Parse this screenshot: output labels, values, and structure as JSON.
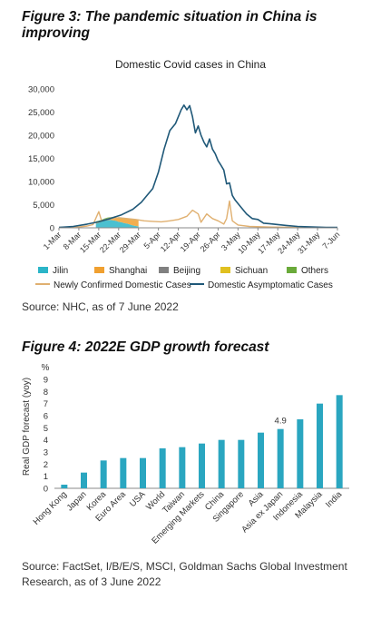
{
  "figure3": {
    "heading": "Figure 3: The pandemic situation in China is improving",
    "source": "Source: NHC, as of 7 June 2022"
  },
  "figure4": {
    "heading": "Figure 4: 2022E GDP growth forecast",
    "source": "Source: FactSet, I/B/E/S, MSCI, Goldman Sachs Global Investment Research, as of 3 June 2022"
  },
  "colors": {
    "jilin": "#2bb5c8",
    "shanghai": "#f0a030",
    "beijing": "#808080",
    "sichuan": "#e0c020",
    "others": "#6aaa3a",
    "newly_confirmed": "#e0b070",
    "asymptomatic": "#1f5878",
    "gdp_bar": "#2aa6c0"
  },
  "chart_data": [
    {
      "type": "area",
      "title": "Domestic Covid cases in China",
      "ylim": [
        0,
        30000
      ],
      "yticks": [
        "0",
        "5,000",
        "10,000",
        "15,000",
        "20,000",
        "25,000",
        "30,000"
      ],
      "x_tick_labels": [
        "1-Mar",
        "8-Mar",
        "15-Mar",
        "22-Mar",
        "29-Mar",
        "5-Apr",
        "12-Apr",
        "19-Apr",
        "26-Apr",
        "3-May",
        "10-May",
        "17-May",
        "24-May",
        "31-May",
        "7-Jun"
      ],
      "stack_days": [
        13,
        14,
        15,
        16,
        17,
        18,
        19,
        20,
        21,
        22,
        23,
        24,
        25,
        26,
        27,
        28
      ],
      "stacked_series": [
        {
          "name": "Jilin",
          "values": [
            900,
            1100,
            1300,
            1500,
            1600,
            1700,
            1600,
            1500,
            1300,
            1200,
            1000,
            900,
            700,
            500,
            400,
            300
          ]
        },
        {
          "name": "Shanghai",
          "values": [
            100,
            150,
            250,
            300,
            400,
            500,
            600,
            700,
            700,
            800,
            900,
            1000,
            1100,
            1200,
            1300,
            1400
          ]
        },
        {
          "name": "Beijing",
          "values": [
            0,
            0,
            0,
            0,
            0,
            0,
            0,
            0,
            0,
            0,
            0,
            0,
            0,
            0,
            0,
            0
          ]
        },
        {
          "name": "Sichuan",
          "values": [
            0,
            0,
            0,
            0,
            0,
            0,
            0,
            0,
            0,
            0,
            0,
            0,
            0,
            0,
            0,
            0
          ]
        },
        {
          "name": "Others",
          "values": [
            400,
            300,
            200,
            200,
            200,
            100,
            100,
            100,
            100,
            100,
            100,
            100,
            100,
            100,
            100,
            100
          ]
        }
      ],
      "line_series": [
        {
          "name": "Newly Confirmed Domestic Cases",
          "points": [
            [
              0,
              100
            ],
            [
              7,
              200
            ],
            [
              10,
              400
            ],
            [
              12,
              700
            ],
            [
              14,
              3500
            ],
            [
              15,
              1500
            ],
            [
              17,
              1800
            ],
            [
              19,
              2000
            ],
            [
              21,
              2200
            ],
            [
              24,
              2000
            ],
            [
              27,
              1800
            ],
            [
              30,
              1500
            ],
            [
              33,
              1400
            ],
            [
              36,
              1300
            ],
            [
              39,
              1500
            ],
            [
              42,
              1800
            ],
            [
              45,
              2500
            ],
            [
              47,
              3800
            ],
            [
              49,
              3000
            ],
            [
              50,
              1200
            ],
            [
              52,
              3000
            ],
            [
              54,
              2000
            ],
            [
              56,
              1500
            ],
            [
              58,
              800
            ],
            [
              59,
              2000
            ],
            [
              60,
              5800
            ],
            [
              61,
              1500
            ],
            [
              63,
              600
            ],
            [
              67,
              300
            ],
            [
              75,
              150
            ],
            [
              85,
              80
            ],
            [
              98,
              60
            ]
          ]
        },
        {
          "name": "Domestic Asymptomatic Cases",
          "points": [
            [
              0,
              100
            ],
            [
              5,
              300
            ],
            [
              10,
              800
            ],
            [
              14,
              1300
            ],
            [
              18,
              2000
            ],
            [
              22,
              2800
            ],
            [
              26,
              4000
            ],
            [
              29,
              5500
            ],
            [
              31,
              7000
            ],
            [
              33,
              8500
            ],
            [
              35,
              12000
            ],
            [
              37,
              17000
            ],
            [
              39,
              21000
            ],
            [
              41,
              22500
            ],
            [
              42,
              24000
            ],
            [
              43,
              25500
            ],
            [
              44,
              26500
            ],
            [
              45,
              25500
            ],
            [
              46,
              26400
            ],
            [
              47,
              24000
            ],
            [
              48,
              20500
            ],
            [
              49,
              22000
            ],
            [
              50,
              20000
            ],
            [
              51,
              18500
            ],
            [
              52,
              17500
            ],
            [
              53,
              19200
            ],
            [
              54,
              17000
            ],
            [
              55,
              16000
            ],
            [
              56,
              14500
            ],
            [
              57,
              13500
            ],
            [
              58,
              12500
            ],
            [
              59,
              9500
            ],
            [
              60,
              9700
            ],
            [
              61,
              7000
            ],
            [
              62,
              6000
            ],
            [
              64,
              4500
            ],
            [
              66,
              3000
            ],
            [
              68,
              2000
            ],
            [
              70,
              1800
            ],
            [
              72,
              1000
            ],
            [
              74,
              900
            ],
            [
              77,
              700
            ],
            [
              80,
              500
            ],
            [
              84,
              300
            ],
            [
              89,
              200
            ],
            [
              94,
              100
            ],
            [
              98,
              80
            ]
          ]
        }
      ],
      "legend": [
        "Jilin",
        "Shanghai",
        "Beijing",
        "Sichuan",
        "Others",
        "Newly Confirmed Domestic Cases",
        "Domestic Asymptomatic Cases"
      ]
    },
    {
      "type": "bar",
      "ylabel": "Real GDP forecast (yoy)",
      "yunit": "%",
      "ylim": [
        0,
        9
      ],
      "yticks": [
        "0",
        "1",
        "2",
        "3",
        "4",
        "5",
        "6",
        "7",
        "8",
        "9"
      ],
      "categories": [
        "Hong Kong",
        "Japan",
        "Korea",
        "Euro Area",
        "USA",
        "World",
        "Taiwan",
        "Emerging Markets",
        "China",
        "Singapore",
        "Asia",
        "Asia ex Japan",
        "Indonesia",
        "Malaysia",
        "India"
      ],
      "values": [
        0.3,
        1.3,
        2.3,
        2.5,
        2.5,
        3.3,
        3.4,
        3.7,
        4.0,
        4.0,
        4.6,
        4.9,
        5.7,
        7.0,
        7.7
      ],
      "data_label": {
        "category": "Asia ex Japan",
        "text": "4.9"
      }
    }
  ]
}
